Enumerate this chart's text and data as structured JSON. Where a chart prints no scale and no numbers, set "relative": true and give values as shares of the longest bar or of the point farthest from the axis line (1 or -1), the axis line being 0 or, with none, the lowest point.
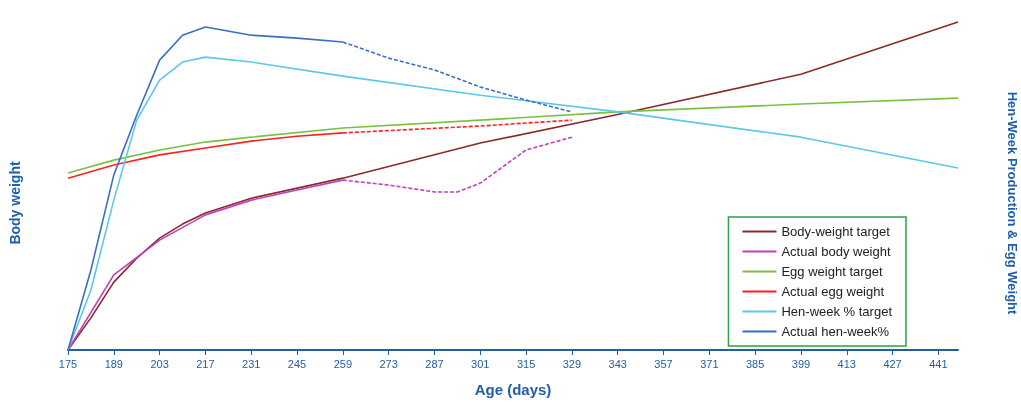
{
  "chart_data": {
    "type": "line",
    "relative": true,
    "xlabel": "Age (days)",
    "ylabel": "Body weight",
    "y2label": "Hen-Week Production & Egg Weight",
    "xlim": [
      175,
      447
    ],
    "xticks": [
      175,
      189,
      203,
      217,
      231,
      245,
      259,
      273,
      287,
      301,
      315,
      329,
      343,
      357,
      371,
      385,
      399,
      413,
      427,
      441
    ],
    "legend": "bottom right",
    "marker": "none",
    "grid": false,
    "series": [
      {
        "name": "Body-weight target",
        "color": "#8b2a2a",
        "line_style": "solid",
        "x": [
          175,
          182,
          189,
          196,
          203,
          210,
          217,
          231,
          259,
          301,
          343,
          399,
          447
        ],
        "values": [
          0,
          0.098,
          0.207,
          0.28,
          0.341,
          0.384,
          0.418,
          0.463,
          0.524,
          0.631,
          0.718,
          0.841,
          1
        ]
      },
      {
        "name": "Actual body weight",
        "color": "#c040c0",
        "line_style": "solid",
        "x": [
          175,
          189,
          203,
          217,
          231,
          245,
          259
        ],
        "values": [
          0,
          0.229,
          0.335,
          0.412,
          0.457,
          0.488,
          0.518
        ]
      },
      {
        "color": "#c040c0",
        "line_style": "dashed",
        "x": [
          259,
          273,
          287,
          294,
          301,
          315,
          329
        ],
        "values": [
          0.518,
          0.503,
          0.482,
          0.482,
          0.509,
          0.61,
          0.649
        ]
      },
      {
        "name": "Egg weight target",
        "color": "#7ac143",
        "line_style": "solid",
        "x": [
          175,
          189,
          203,
          217,
          231,
          259,
          301,
          343,
          399,
          447
        ],
        "values": [
          0.54,
          0.579,
          0.61,
          0.634,
          0.649,
          0.677,
          0.701,
          0.726,
          0.75,
          0.768
        ]
      },
      {
        "name": "Actual egg weight",
        "color": "#ff2020",
        "line_style": "solid",
        "x": [
          175,
          189,
          203,
          217,
          231,
          245,
          259
        ],
        "values": [
          0.524,
          0.564,
          0.595,
          0.616,
          0.637,
          0.652,
          0.662
        ]
      },
      {
        "color": "#ff2020",
        "line_style": "dashed",
        "x": [
          259,
          301,
          329
        ],
        "values": [
          0.662,
          0.683,
          0.701
        ]
      },
      {
        "name": "Hen-week % target",
        "color": "#5bc8e8",
        "line_style": "solid",
        "x": [
          175,
          182,
          189,
          196,
          203,
          210,
          217,
          231,
          259,
          301,
          343,
          399,
          447
        ],
        "values": [
          0,
          0.183,
          0.457,
          0.701,
          0.823,
          0.878,
          0.893,
          0.878,
          0.835,
          0.777,
          0.726,
          0.649,
          0.555
        ]
      },
      {
        "name": "Actual hen-week%",
        "color": "#3b6fc4",
        "line_style": "solid",
        "x": [
          175,
          182,
          189,
          196,
          203,
          210,
          217,
          231,
          245,
          259
        ],
        "values": [
          0,
          0.244,
          0.534,
          0.716,
          0.884,
          0.96,
          0.985,
          0.96,
          0.951,
          0.939
        ]
      },
      {
        "color": "#3b6fc4",
        "line_style": "dashed",
        "x": [
          259,
          273,
          287,
          301,
          315,
          329
        ],
        "values": [
          0.939,
          0.89,
          0.854,
          0.802,
          0.762,
          0.726
        ]
      }
    ]
  }
}
